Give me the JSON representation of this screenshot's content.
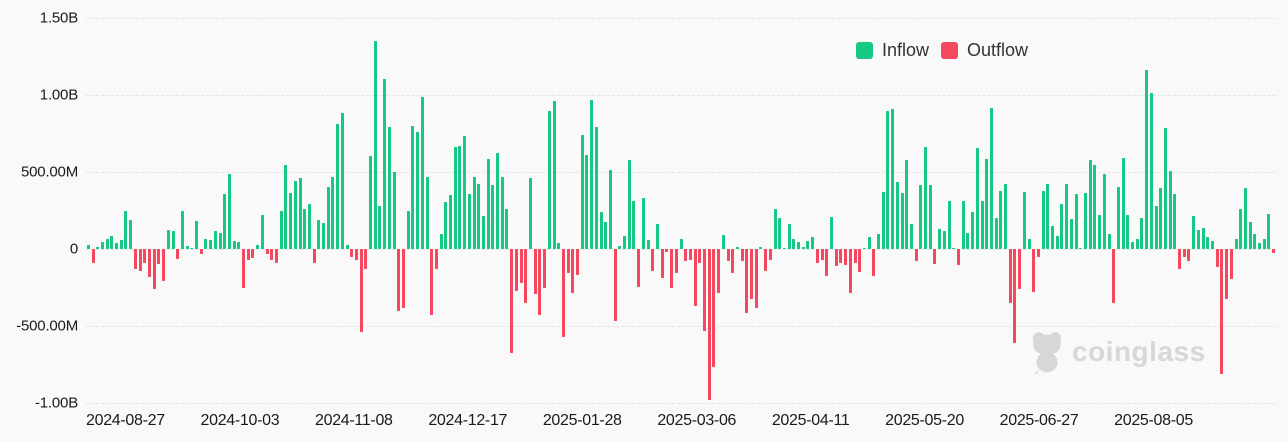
{
  "legend": {
    "inflow_label": "Inflow",
    "outflow_label": "Outflow"
  },
  "watermark": {
    "text": "coinglass"
  },
  "colors": {
    "inflow": "#17c784",
    "outflow": "#f5475d",
    "grid": "#e4e4e4",
    "background": "#f9f9f9",
    "axis_text": "#1a1a1a",
    "watermark": "#d7d7d7"
  },
  "y_axis": {
    "labels": [
      "1.50B",
      "1.00B",
      "500.00M",
      "0",
      "-500.00M",
      "-1.00B"
    ],
    "values_m": [
      1500,
      1000,
      500,
      0,
      -500,
      -1000
    ]
  },
  "x_axis": {
    "labels": [
      "2024-08-27",
      "2024-10-03",
      "2024-11-08",
      "2024-12-17",
      "2025-01-28",
      "2025-03-06",
      "2025-04-11",
      "2025-05-20",
      "2025-06-27",
      "2025-08-05"
    ]
  },
  "chart_data": {
    "type": "bar",
    "title": "",
    "xlabel": "",
    "ylabel": "",
    "unit": "USD, values in millions; positive = Inflow (green), negative = Outflow (red)",
    "ylim_m": [
      -1000,
      1500
    ],
    "grid": "dashed horizontal",
    "legend_position": "top-right",
    "series": [
      {
        "name": "Inflow",
        "color": "#17c784"
      },
      {
        "name": "Outflow",
        "color": "#f5475d"
      }
    ],
    "date_range": [
      "2024-08-27",
      "2025-08-05"
    ],
    "values_m": [
      26,
      -92,
      11,
      43,
      62,
      83,
      36,
      58,
      245,
      190,
      -130,
      -141,
      -92,
      -180,
      -260,
      -95,
      -210,
      122,
      115,
      -66,
      250,
      19,
      4,
      182,
      -32,
      68,
      58,
      118,
      105,
      357,
      485,
      53,
      47,
      -252,
      -70,
      -60,
      26,
      222,
      -32,
      -70,
      -92,
      244,
      543,
      361,
      442,
      464,
      261,
      293,
      -92,
      186,
      169,
      404,
      470,
      810,
      885,
      26,
      -49,
      -70,
      -540,
      -130,
      603,
      1350,
      282,
      1105,
      790,
      498,
      -402,
      -380,
      246,
      800,
      759,
      988,
      470,
      -430,
      -130,
      96,
      308,
      348,
      663,
      671,
      731,
      357,
      470,
      425,
      212,
      586,
      417,
      624,
      470,
      261,
      -675,
      -274,
      -224,
      -349,
      464,
      -295,
      -430,
      -252,
      896,
      964,
      41,
      -573,
      -156,
      -284,
      -167,
      742,
      613,
      966,
      789,
      239,
      175,
      511,
      -466,
      19,
      83,
      581,
      310,
      -248,
      329,
      58,
      -141,
      160,
      -188,
      -20,
      -252,
      -156,
      62,
      -81,
      -70,
      -370,
      -92,
      -530,
      -979,
      -765,
      -284,
      90,
      -81,
      -156,
      15,
      -81,
      -417,
      -327,
      -380,
      11,
      -145,
      -70,
      261,
      203,
      5,
      165,
      62,
      47,
      15,
      53,
      75,
      -92,
      -70,
      -177,
      207,
      -113,
      -92,
      -103,
      -284,
      -88,
      -152,
      5,
      75,
      -177,
      96,
      368,
      898,
      908,
      436,
      363,
      581,
      165,
      -81,
      415,
      660,
      417,
      -98,
      133,
      115,
      310,
      8,
      -103,
      310,
      105,
      239,
      656,
      314,
      586,
      917,
      201,
      378,
      425,
      -353,
      -609,
      -259,
      372,
      62,
      -280,
      -49,
      378,
      421,
      148,
      83,
      289,
      421,
      197,
      357,
      4,
      361,
      581,
      545,
      222,
      489,
      96,
      -353,
      404,
      592,
      224,
      47,
      68,
      201,
      1160,
      1015,
      276,
      395,
      784,
      506,
      357,
      -130,
      -49,
      -81,
      212,
      122,
      139,
      75,
      53,
      -118,
      -812,
      -323,
      -195,
      62,
      261,
      395,
      175,
      96,
      41,
      68,
      228,
      -23
    ]
  }
}
